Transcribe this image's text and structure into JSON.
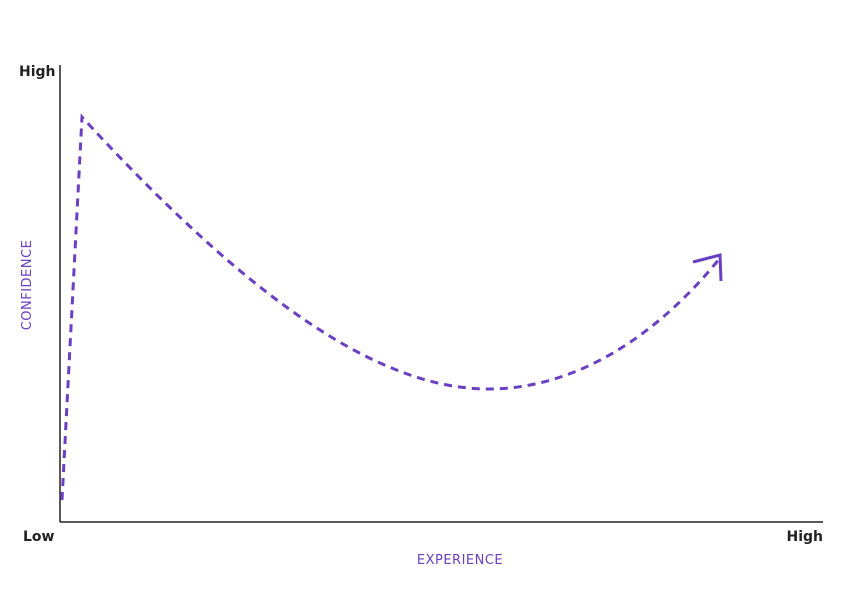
{
  "y_axis": {
    "label": "CONFIDENCE",
    "high": "High"
  },
  "x_axis": {
    "label": "EXPERIENCE",
    "low": "Low",
    "high": "High"
  }
}
